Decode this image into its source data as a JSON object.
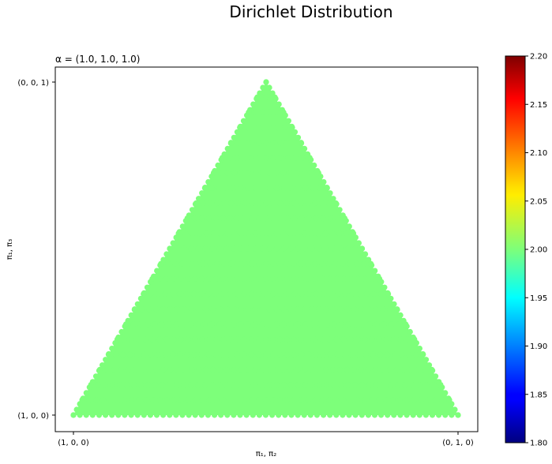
{
  "chart_data": {
    "type": "scatter",
    "suptitle": "Dirichlet Distribution",
    "title": "α = (1.0, 1.0, 1.0)",
    "alpha": [
      1.0,
      1.0,
      1.0
    ],
    "xlabel": "π₁, π₂",
    "ylabel": "π₁, π₃",
    "x_ticks": [
      "(1, 0, 0)",
      "(0, 1, 0)"
    ],
    "y_ticks": [
      "(1, 0, 0)",
      "(0, 0, 1)"
    ],
    "point_value": 2.0,
    "point_color": "#7dff7a",
    "colorbar": {
      "colormap": "jet",
      "vmin": 1.8,
      "vmax": 2.2,
      "ticks": [
        "1.80",
        "1.85",
        "1.90",
        "1.95",
        "2.00",
        "2.05",
        "2.10",
        "2.15",
        "2.20"
      ]
    },
    "grid": false,
    "simplex_vertices": [
      "(1, 0, 0)",
      "(0, 1, 0)",
      "(0, 0, 1)"
    ]
  }
}
